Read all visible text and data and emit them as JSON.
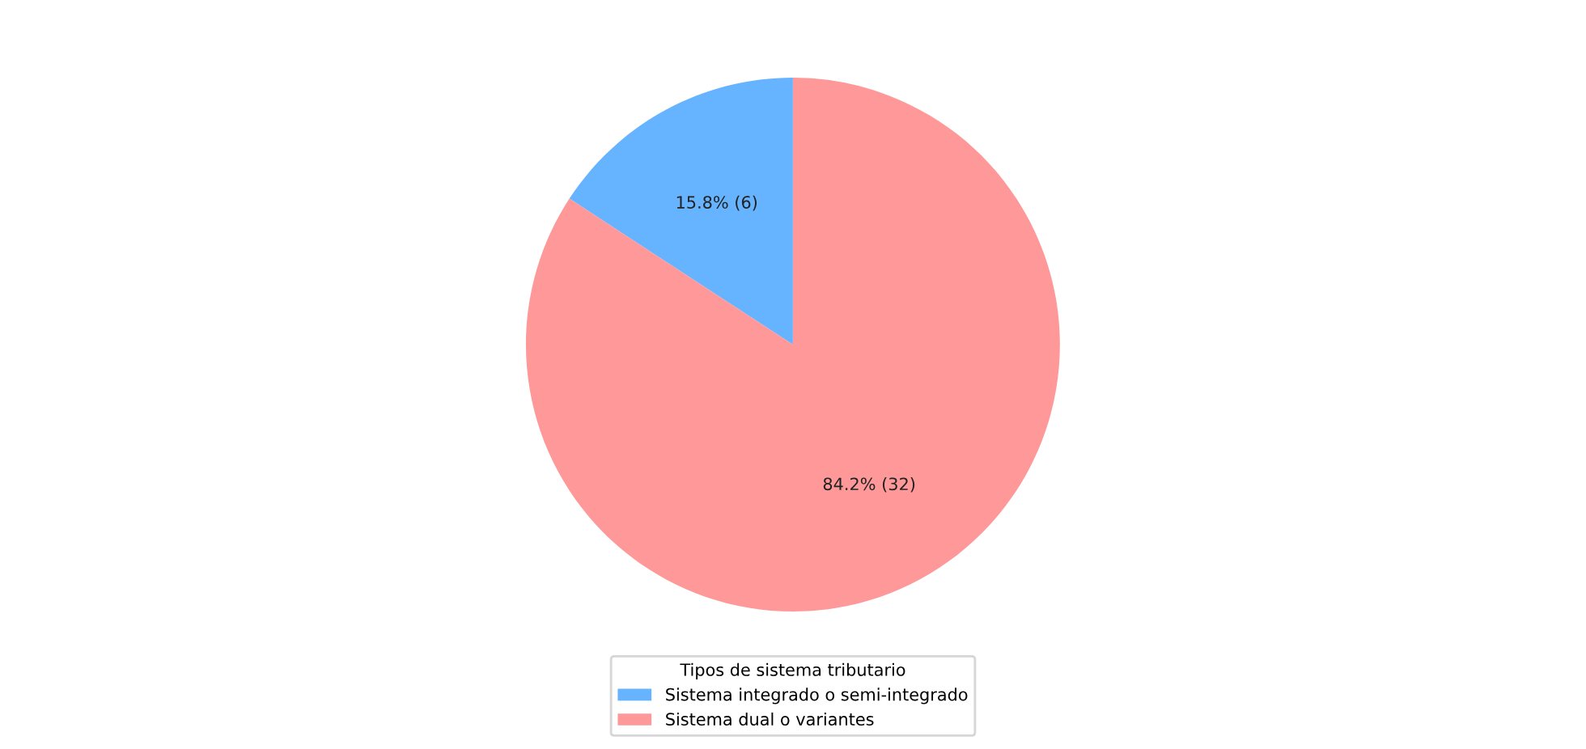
{
  "chart_data": {
    "type": "pie",
    "legend_title": "Tipos de sistema tributario",
    "legend": "bottom",
    "categories": [
      "Sistema integrado o semi-integrado",
      "Sistema dual o variantes"
    ],
    "values": [
      6,
      32
    ],
    "colors": [
      "#66b3ff",
      "#ff9999"
    ],
    "value_labels": [
      "15.8% (6)",
      "84.2% (32)"
    ]
  }
}
